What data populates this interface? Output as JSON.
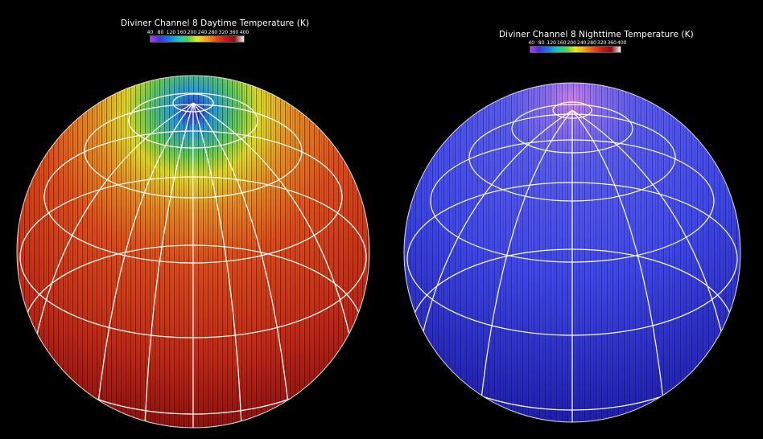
{
  "day": {
    "title": "Diviner Channel 8 Daytime Temperature (K)",
    "ticks": [
      "40",
      "80",
      "120",
      "160",
      "200",
      "240",
      "280",
      "320",
      "360",
      "400"
    ]
  },
  "night": {
    "title": "Diviner Channel 8 Nighttime Temperature (K)",
    "ticks": [
      "40",
      "80",
      "120",
      "160",
      "200",
      "240",
      "280",
      "320",
      "360",
      "400"
    ]
  },
  "colormap": [
    "#b040f0",
    "#4030e0",
    "#1a7ae8",
    "#18c8c0",
    "#50d050",
    "#e8e820",
    "#f0a020",
    "#e85018",
    "#c81818",
    "#901010",
    "#f0f0f0"
  ],
  "colors": {
    "day_globe": [
      "#f06a1c",
      "#e0401a",
      "#a01010"
    ],
    "night_globe": [
      "#4a52f0",
      "#3a3ee8",
      "#1c1ca8"
    ],
    "grid": "#ffffff",
    "background": "#000000"
  }
}
